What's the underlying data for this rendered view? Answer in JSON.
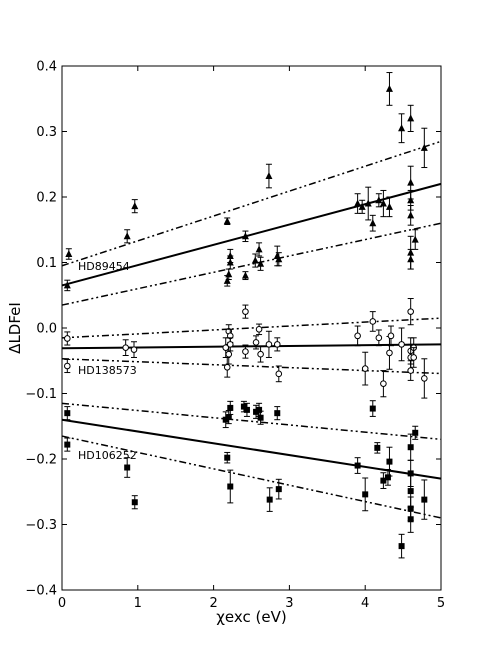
{
  "chart_data": {
    "type": "scatter",
    "title": "",
    "xlabel": "χexc (eV)",
    "ylabel": "ΔLDFeI",
    "xlim": [
      0,
      5
    ],
    "ylim": [
      -0.4,
      0.4
    ],
    "x_ticks": [
      0,
      1,
      2,
      3,
      4,
      5
    ],
    "x_tick_labels": [
      "0",
      "1",
      "2",
      "3",
      "4",
      "5"
    ],
    "y_ticks": [
      -0.4,
      -0.3,
      -0.2,
      -0.1,
      0.0,
      0.1,
      0.2,
      0.3,
      0.4
    ],
    "y_tick_labels": [
      "−0.4",
      "−0.3",
      "−0.2",
      "−0.1",
      "0.0",
      "0.1",
      "0.2",
      "0.3",
      "0.4"
    ],
    "grid": false,
    "legend": "none",
    "series": [
      {
        "name": "HD89454",
        "marker": "triangle-filled",
        "fit": {
          "intercept": 0.065,
          "slope": 0.031
        },
        "bounds": [
          {
            "intercept": 0.095,
            "slope": 0.038
          },
          {
            "intercept": 0.035,
            "slope": 0.025
          }
        ],
        "points": [
          {
            "x": 0.07,
            "y": 0.065,
            "err": 0.008
          },
          {
            "x": 0.09,
            "y": 0.113,
            "err": 0.008
          },
          {
            "x": 0.86,
            "y": 0.14,
            "err": 0.01
          },
          {
            "x": 0.96,
            "y": 0.186,
            "err": 0.01
          },
          {
            "x": 2.18,
            "y": 0.163,
            "err": 0.005
          },
          {
            "x": 2.18,
            "y": 0.072,
            "err": 0.008
          },
          {
            "x": 2.2,
            "y": 0.082,
            "err": 0.008
          },
          {
            "x": 2.22,
            "y": 0.1,
            "err": 0.01
          },
          {
            "x": 2.22,
            "y": 0.11,
            "err": 0.01
          },
          {
            "x": 2.42,
            "y": 0.14,
            "err": 0.008
          },
          {
            "x": 2.42,
            "y": 0.08,
            "err": 0.006
          },
          {
            "x": 2.55,
            "y": 0.103,
            "err": 0.01
          },
          {
            "x": 2.6,
            "y": 0.12,
            "err": 0.01
          },
          {
            "x": 2.62,
            "y": 0.098,
            "err": 0.01
          },
          {
            "x": 2.73,
            "y": 0.232,
            "err": 0.018
          },
          {
            "x": 2.84,
            "y": 0.11,
            "err": 0.015
          },
          {
            "x": 2.86,
            "y": 0.105,
            "err": 0.01
          },
          {
            "x": 3.9,
            "y": 0.19,
            "err": 0.015
          },
          {
            "x": 3.96,
            "y": 0.185,
            "err": 0.01
          },
          {
            "x": 4.04,
            "y": 0.19,
            "err": 0.025
          },
          {
            "x": 4.1,
            "y": 0.16,
            "err": 0.012
          },
          {
            "x": 4.18,
            "y": 0.195,
            "err": 0.01
          },
          {
            "x": 4.24,
            "y": 0.19,
            "err": 0.02
          },
          {
            "x": 4.32,
            "y": 0.365,
            "err": 0.025
          },
          {
            "x": 4.32,
            "y": 0.185,
            "err": 0.015
          },
          {
            "x": 4.48,
            "y": 0.305,
            "err": 0.022
          },
          {
            "x": 4.6,
            "y": 0.32,
            "err": 0.02
          },
          {
            "x": 4.6,
            "y": 0.222,
            "err": 0.025
          },
          {
            "x": 4.6,
            "y": 0.195,
            "err": 0.015
          },
          {
            "x": 4.6,
            "y": 0.172,
            "err": 0.015
          },
          {
            "x": 4.6,
            "y": 0.115,
            "err": 0.025
          },
          {
            "x": 4.6,
            "y": 0.105,
            "err": 0.015
          },
          {
            "x": 4.66,
            "y": 0.135,
            "err": 0.015
          },
          {
            "x": 4.78,
            "y": 0.275,
            "err": 0.03
          }
        ]
      },
      {
        "name": "HD138573",
        "marker": "circle-open",
        "fit": {
          "intercept": -0.031,
          "slope": 0.0012
        },
        "bounds": [
          {
            "intercept": -0.015,
            "slope": 0.006
          },
          {
            "intercept": -0.047,
            "slope": -0.0045
          }
        ],
        "points": [
          {
            "x": 0.07,
            "y": -0.016,
            "err": 0.01
          },
          {
            "x": 0.07,
            "y": -0.058,
            "err": 0.01
          },
          {
            "x": 0.84,
            "y": -0.03,
            "err": 0.012
          },
          {
            "x": 0.95,
            "y": -0.033,
            "err": 0.012
          },
          {
            "x": 2.16,
            "y": -0.03,
            "err": 0.015
          },
          {
            "x": 2.18,
            "y": -0.06,
            "err": 0.015
          },
          {
            "x": 2.2,
            "y": -0.005,
            "err": 0.01
          },
          {
            "x": 2.2,
            "y": -0.04,
            "err": 0.015
          },
          {
            "x": 2.22,
            "y": -0.012,
            "err": 0.01
          },
          {
            "x": 2.22,
            "y": -0.025,
            "err": 0.01
          },
          {
            "x": 2.42,
            "y": 0.025,
            "err": 0.01
          },
          {
            "x": 2.42,
            "y": -0.036,
            "err": 0.01
          },
          {
            "x": 2.56,
            "y": -0.022,
            "err": 0.01
          },
          {
            "x": 2.6,
            "y": -0.002,
            "err": 0.008
          },
          {
            "x": 2.62,
            "y": -0.04,
            "err": 0.012
          },
          {
            "x": 2.73,
            "y": -0.025,
            "err": 0.02
          },
          {
            "x": 2.84,
            "y": -0.025,
            "err": 0.01
          },
          {
            "x": 2.86,
            "y": -0.07,
            "err": 0.012
          },
          {
            "x": 3.9,
            "y": -0.012,
            "err": 0.015
          },
          {
            "x": 4.0,
            "y": -0.062,
            "err": 0.025
          },
          {
            "x": 4.1,
            "y": 0.01,
            "err": 0.015
          },
          {
            "x": 4.18,
            "y": -0.015,
            "err": 0.012
          },
          {
            "x": 4.24,
            "y": -0.085,
            "err": 0.02
          },
          {
            "x": 4.32,
            "y": -0.038,
            "err": 0.025
          },
          {
            "x": 4.34,
            "y": -0.012,
            "err": 0.015
          },
          {
            "x": 4.48,
            "y": -0.025,
            "err": 0.025
          },
          {
            "x": 4.6,
            "y": 0.025,
            "err": 0.02
          },
          {
            "x": 4.6,
            "y": -0.035,
            "err": 0.02
          },
          {
            "x": 4.6,
            "y": -0.045,
            "err": 0.02
          },
          {
            "x": 4.6,
            "y": -0.065,
            "err": 0.015
          },
          {
            "x": 4.64,
            "y": -0.03,
            "err": 0.015
          },
          {
            "x": 4.64,
            "y": -0.045,
            "err": 0.015
          },
          {
            "x": 4.78,
            "y": -0.077,
            "err": 0.03
          }
        ]
      },
      {
        "name": "HD106252",
        "marker": "square-filled",
        "fit": {
          "intercept": -0.14,
          "slope": -0.018
        },
        "bounds": [
          {
            "intercept": -0.115,
            "slope": -0.011
          },
          {
            "intercept": -0.165,
            "slope": -0.025
          }
        ],
        "points": [
          {
            "x": 0.07,
            "y": -0.13,
            "err": 0.01
          },
          {
            "x": 0.07,
            "y": -0.178,
            "err": 0.01
          },
          {
            "x": 0.86,
            "y": -0.213,
            "err": 0.015
          },
          {
            "x": 0.96,
            "y": -0.266,
            "err": 0.01
          },
          {
            "x": 2.16,
            "y": -0.14,
            "err": 0.012
          },
          {
            "x": 2.18,
            "y": -0.198,
            "err": 0.008
          },
          {
            "x": 2.2,
            "y": -0.136,
            "err": 0.01
          },
          {
            "x": 2.22,
            "y": -0.122,
            "err": 0.01
          },
          {
            "x": 2.22,
            "y": -0.242,
            "err": 0.025
          },
          {
            "x": 2.4,
            "y": -0.12,
            "err": 0.008
          },
          {
            "x": 2.44,
            "y": -0.125,
            "err": 0.01
          },
          {
            "x": 2.56,
            "y": -0.128,
            "err": 0.01
          },
          {
            "x": 2.6,
            "y": -0.125,
            "err": 0.01
          },
          {
            "x": 2.62,
            "y": -0.137,
            "err": 0.01
          },
          {
            "x": 2.74,
            "y": -0.262,
            "err": 0.018
          },
          {
            "x": 2.84,
            "y": -0.13,
            "err": 0.01
          },
          {
            "x": 2.86,
            "y": -0.246,
            "err": 0.015
          },
          {
            "x": 3.9,
            "y": -0.21,
            "err": 0.012
          },
          {
            "x": 4.0,
            "y": -0.254,
            "err": 0.025
          },
          {
            "x": 4.1,
            "y": -0.123,
            "err": 0.012
          },
          {
            "x": 4.16,
            "y": -0.183,
            "err": 0.008
          },
          {
            "x": 4.24,
            "y": -0.233,
            "err": 0.012
          },
          {
            "x": 4.3,
            "y": -0.228,
            "err": 0.012
          },
          {
            "x": 4.32,
            "y": -0.204,
            "err": 0.022
          },
          {
            "x": 4.48,
            "y": -0.333,
            "err": 0.018
          },
          {
            "x": 4.6,
            "y": -0.182,
            "err": 0.02
          },
          {
            "x": 4.6,
            "y": -0.222,
            "err": 0.02
          },
          {
            "x": 4.6,
            "y": -0.249,
            "err": 0.025
          },
          {
            "x": 4.6,
            "y": -0.276,
            "err": 0.018
          },
          {
            "x": 4.6,
            "y": -0.292,
            "err": 0.02
          },
          {
            "x": 4.66,
            "y": -0.16,
            "err": 0.01
          },
          {
            "x": 4.78,
            "y": -0.262,
            "err": 0.03
          }
        ]
      }
    ]
  }
}
